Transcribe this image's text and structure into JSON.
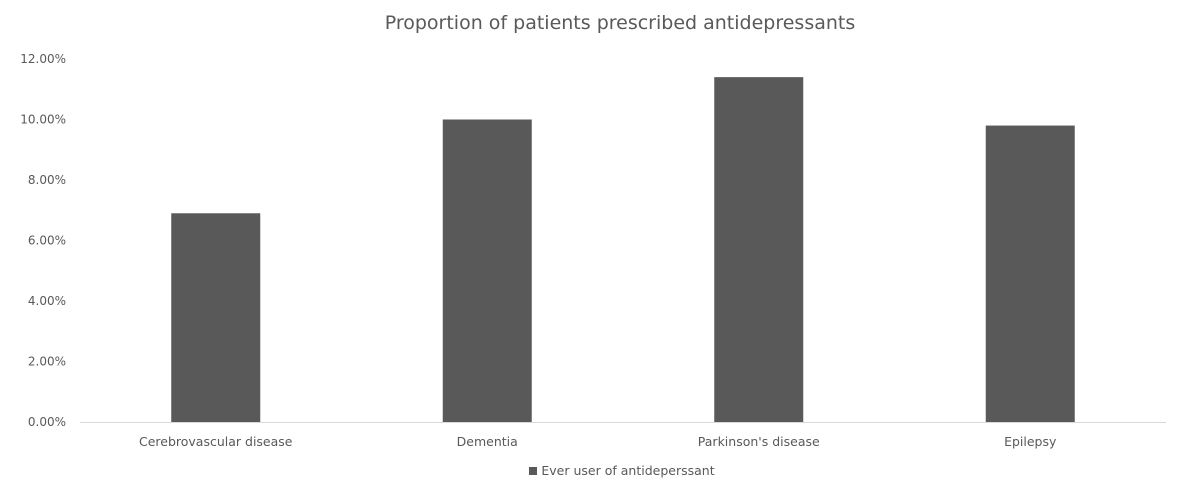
{
  "chart_data": {
    "type": "bar",
    "title": "Proportion of patients prescribed antidepressants",
    "categories": [
      "Cerebrovascular disease",
      "Dementia",
      "Parkinson's disease",
      "Epilepsy"
    ],
    "series": [
      {
        "name": "Ever user of antideperssant",
        "values": [
          6.9,
          10.0,
          11.4,
          9.8
        ],
        "color": "#595959"
      }
    ],
    "y_unit": "percent",
    "ylim": [
      0,
      12
    ],
    "yticks": [
      "0.00%",
      "2.00%",
      "4.00%",
      "6.00%",
      "8.00%",
      "10.00%",
      "12.00%"
    ],
    "grid": false,
    "legend_position": "bottom"
  }
}
